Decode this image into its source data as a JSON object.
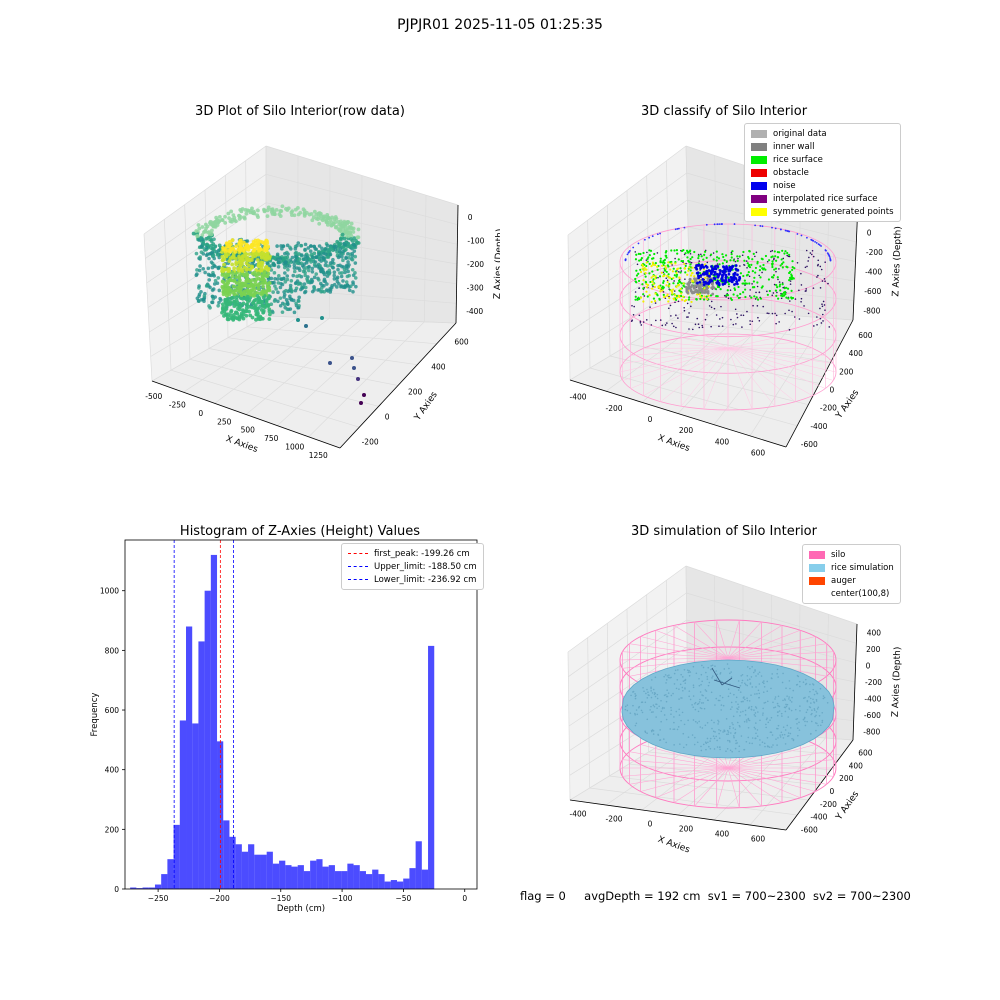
{
  "figure": {
    "suptitle": "PJPJR01 2025-11-05 01:25:35",
    "footer": {
      "flag": "flag = 0",
      "avg_depth": "avgDepth = 192 cm",
      "sv1": "sv1 = 700~2300",
      "sv2": "sv2 = 700~2300"
    }
  },
  "panels": {
    "raw": {
      "title": "3D Plot of Silo Interior(row data)"
    },
    "classify": {
      "title": "3D classify of Silo Interior",
      "legend": [
        {
          "label": "original data",
          "color": "#b0b0b0"
        },
        {
          "label": "inner wall",
          "color": "#808080"
        },
        {
          "label": "rice surface",
          "color": "#00ee00"
        },
        {
          "label": "obstacle",
          "color": "#ee0000"
        },
        {
          "label": "noise",
          "color": "#0000ee"
        },
        {
          "label": "interpolated rice surface",
          "color": "#800080"
        },
        {
          "label": "symmetric generated points",
          "color": "#ffff00"
        }
      ]
    },
    "histogram": {
      "title": "Histogram of Z-Axies (Height) Values",
      "legend": [
        {
          "label": "first_peak: -199.26 cm",
          "color": "#ff0000"
        },
        {
          "label": "Upper_limit: -188.50 cm",
          "color": "#0000ff"
        },
        {
          "label": "Lower_limit: -236.92 cm",
          "color": "#0000ff"
        }
      ]
    },
    "simulation": {
      "title": "3D simulation of Silo Interior",
      "legend": [
        {
          "label": "silo",
          "color": "#ff69b4"
        },
        {
          "label": "rice simulation",
          "color": "#87ceeb"
        },
        {
          "label": "auger",
          "color": "#ff4500"
        },
        {
          "label": "center(100,8)",
          "color": "#ffffff"
        }
      ]
    }
  },
  "axes3d": {
    "raw": {
      "xlabel": "X Axies",
      "ylabel": "Y Axies",
      "zlabel": "Z Axies (Depth)",
      "xticks": [
        "-500",
        "-250",
        "0",
        "250",
        "500",
        "750",
        "1000",
        "1250"
      ],
      "yticks": [
        "-200",
        "0",
        "200",
        "400",
        "600"
      ],
      "zticks": [
        "0",
        "-100",
        "-200",
        "-300",
        "-400"
      ]
    },
    "classify": {
      "xlabel": "X Axies",
      "ylabel": "Y Axies",
      "zlabel": "Z Axies (Depth)",
      "xticks": [
        "-400",
        "-200",
        "0",
        "200",
        "400",
        "600"
      ],
      "yticks": [
        "-600",
        "-400",
        "-200",
        "0",
        "200",
        "400",
        "600"
      ],
      "zticks": [
        "200",
        "0",
        "-200",
        "-400",
        "-600",
        "-800"
      ]
    },
    "simulation": {
      "xlabel": "X Axies",
      "ylabel": "Y Axies",
      "zlabel": "Z Axies (Depth)",
      "xticks": [
        "-400",
        "-200",
        "0",
        "200",
        "400",
        "600"
      ],
      "yticks": [
        "-600",
        "-400",
        "-200",
        "0",
        "200",
        "400",
        "600"
      ],
      "zticks": [
        "400",
        "200",
        "0",
        "-200",
        "-400",
        "-600",
        "-800"
      ]
    }
  },
  "chart_data": [
    {
      "type": "scatter",
      "title": "3D Plot of Silo Interior(row data)",
      "xlabel": "X Axies",
      "ylabel": "Y Axies",
      "zlabel": "Z Axies (Depth)",
      "xlim": [
        -600,
        1300
      ],
      "ylim": [
        -250,
        700
      ],
      "zlim": [
        -450,
        20
      ],
      "colormap": "viridis"
    },
    {
      "type": "scatter",
      "title": "3D classify of Silo Interior",
      "xlabel": "X Axies",
      "ylabel": "Y Axies",
      "zlabel": "Z Axies (Depth)",
      "xlim": [
        -500,
        700
      ],
      "ylim": [
        -650,
        700
      ],
      "zlim": [
        -900,
        300
      ],
      "series": [
        {
          "name": "original data"
        },
        {
          "name": "inner wall"
        },
        {
          "name": "rice surface"
        },
        {
          "name": "obstacle"
        },
        {
          "name": "noise"
        },
        {
          "name": "interpolated rice surface"
        },
        {
          "name": "symmetric generated points"
        }
      ]
    },
    {
      "type": "bar",
      "title": "Histogram of Z-Axies (Height) Values",
      "xlabel": "Depth (cm)",
      "ylabel": "Frequency",
      "xlim": [
        -277,
        10
      ],
      "ylim": [
        0,
        1170
      ],
      "xticks": [
        -250,
        -200,
        -150,
        -100,
        -50,
        0
      ],
      "yticks": [
        0,
        200,
        400,
        600,
        800,
        1000
      ],
      "bar_color": "#0000ff",
      "bin_width": 5.06,
      "bin_start": -272.8,
      "values": [
        5,
        3,
        5,
        5,
        15,
        50,
        100,
        215,
        565,
        880,
        555,
        830,
        1000,
        1120,
        495,
        230,
        175,
        150,
        125,
        150,
        115,
        115,
        125,
        85,
        95,
        80,
        75,
        80,
        60,
        95,
        100,
        75,
        80,
        60,
        60,
        85,
        80,
        60,
        50,
        65,
        50,
        25,
        30,
        25,
        35,
        70,
        160,
        65,
        815
      ],
      "vlines": [
        {
          "x": -199.26,
          "color": "#ff0000",
          "label": "first_peak: -199.26 cm"
        },
        {
          "x": -188.5,
          "color": "#0000ff",
          "label": "Upper_limit: -188.50 cm"
        },
        {
          "x": -236.92,
          "color": "#0000ff",
          "label": "Lower_limit: -236.92 cm"
        }
      ],
      "legend_position": "top-right"
    },
    {
      "type": "scatter",
      "title": "3D simulation of Silo Interior",
      "xlabel": "X Axies",
      "ylabel": "Y Axies",
      "zlabel": "Z Axies (Depth)",
      "xlim": [
        -500,
        700
      ],
      "ylim": [
        -650,
        700
      ],
      "zlim": [
        -900,
        450
      ],
      "series": [
        {
          "name": "silo"
        },
        {
          "name": "rice simulation"
        },
        {
          "name": "auger"
        },
        {
          "name": "center(100,8)"
        }
      ]
    }
  ]
}
